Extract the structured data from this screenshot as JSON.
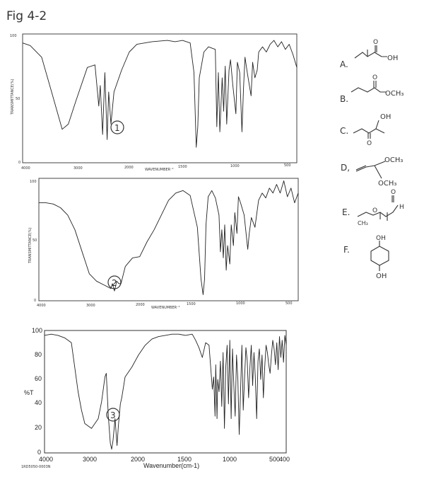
{
  "page": {
    "fig_label": "Fig 4-2"
  },
  "chart_data": [
    {
      "type": "line",
      "label": "1",
      "xlabel": "WAVENUMBER⁻¹",
      "ylabel": "TRANSMITTANCE(%)",
      "xlim": [
        4000,
        400
      ],
      "ylim": [
        0,
        100
      ],
      "x_ticks": [
        "4000",
        "3000",
        "2000",
        "1500",
        "1000",
        "500"
      ],
      "y_ticks": [
        "100",
        "50",
        "0"
      ],
      "series": [
        {
          "x": [
            4000,
            3900,
            3750,
            3620,
            3480,
            3400,
            3300,
            3150,
            3050,
            3000,
            2980,
            2950,
            2920,
            2890,
            2870,
            2840,
            2800,
            2700,
            2600,
            2500,
            2300,
            2100,
            2000,
            1900,
            1800,
            1750,
            1720,
            1700,
            1680,
            1620,
            1560,
            1470,
            1450,
            1430,
            1410,
            1380,
            1360,
            1340,
            1320,
            1290,
            1270,
            1240,
            1200,
            1180,
            1150,
            1120,
            1100,
            1080,
            1050,
            1000,
            980,
            950,
            920,
            900,
            850,
            800,
            750,
            700,
            650,
            600,
            550,
            500,
            450,
            400
          ],
          "y": [
            93,
            91,
            82,
            55,
            26,
            30,
            48,
            74,
            76,
            44,
            60,
            22,
            70,
            18,
            55,
            30,
            55,
            72,
            86,
            92,
            94,
            95,
            94,
            95,
            93,
            70,
            12,
            28,
            66,
            86,
            90,
            88,
            28,
            70,
            24,
            66,
            40,
            75,
            30,
            72,
            80,
            60,
            38,
            78,
            70,
            24,
            58,
            82,
            70,
            52,
            78,
            66,
            72,
            86,
            90,
            86,
            92,
            95,
            90,
            94,
            88,
            92,
            84,
            74
          ]
        }
      ]
    },
    {
      "type": "line",
      "label": "2",
      "xlabel": "WAVENUMBER⁻¹",
      "ylabel": "TRANSMITTANCE(%)",
      "xlim": [
        4000,
        400
      ],
      "ylim": [
        0,
        100
      ],
      "x_ticks": [
        "4000",
        "3000",
        "2000",
        "1500",
        "1000",
        "500"
      ],
      "y_ticks": [
        "100",
        "50",
        "0"
      ],
      "series": [
        {
          "x": [
            4000,
            3900,
            3800,
            3700,
            3600,
            3500,
            3400,
            3300,
            3200,
            3100,
            3000,
            2980,
            2950,
            2920,
            2890,
            2860,
            2800,
            2700,
            2600,
            2500,
            2400,
            2300,
            2200,
            2100,
            2000,
            1900,
            1800,
            1750,
            1720,
            1700,
            1680,
            1650,
            1600,
            1550,
            1500,
            1480,
            1460,
            1440,
            1420,
            1400,
            1380,
            1350,
            1330,
            1300,
            1280,
            1250,
            1230,
            1200,
            1150,
            1100,
            1080,
            1050,
            1000,
            950,
            900,
            850,
            800,
            750,
            700,
            650,
            600,
            550,
            500,
            450,
            400
          ],
          "y": [
            80,
            80,
            79,
            76,
            70,
            58,
            40,
            22,
            16,
            13,
            10,
            14,
            8,
            16,
            14,
            14,
            28,
            35,
            36,
            48,
            58,
            70,
            82,
            88,
            90,
            86,
            60,
            18,
            5,
            18,
            62,
            85,
            90,
            84,
            70,
            40,
            58,
            35,
            62,
            25,
            45,
            30,
            62,
            45,
            72,
            55,
            85,
            80,
            70,
            42,
            55,
            68,
            60,
            82,
            88,
            84,
            92,
            88,
            95,
            88,
            98,
            85,
            92,
            80,
            88
          ]
        }
      ]
    },
    {
      "type": "line",
      "label": "3",
      "xlabel": "Wavenumber(cm-1)",
      "ylabel": "%T",
      "xlim": [
        4000,
        400
      ],
      "ylim": [
        0,
        100
      ],
      "x_ticks": [
        "4000",
        "3000",
        "2000",
        "1500",
        "1000",
        "500",
        "400"
      ],
      "y_ticks": [
        "100",
        "80",
        "60",
        "40",
        "20",
        "0"
      ],
      "series": [
        {
          "x": [
            4000,
            3900,
            3800,
            3700,
            3600,
            3500,
            3450,
            3400,
            3300,
            3200,
            3150,
            3100,
            3080,
            3050,
            3020,
            3000,
            2980,
            2950,
            2920,
            2900,
            2870,
            2850,
            2800,
            2700,
            2600,
            2500,
            2400,
            2300,
            2200,
            2100,
            2000,
            1900,
            1800,
            1750,
            1700,
            1650,
            1600,
            1550,
            1500,
            1480,
            1460,
            1450,
            1430,
            1420,
            1400,
            1380,
            1360,
            1340,
            1320,
            1300,
            1280,
            1260,
            1240,
            1220,
            1200,
            1180,
            1160,
            1140,
            1120,
            1100,
            1080,
            1060,
            1040,
            1020,
            1000,
            980,
            960,
            940,
            920,
            900,
            880,
            860,
            840,
            820,
            800,
            780,
            760,
            740,
            720,
            700,
            680,
            660,
            640,
            620,
            600,
            580,
            560,
            540,
            520,
            500,
            480,
            460,
            440,
            420,
            400
          ],
          "y": [
            96,
            97,
            96,
            94,
            90,
            50,
            35,
            24,
            20,
            28,
            42,
            62,
            65,
            30,
            8,
            3,
            10,
            28,
            6,
            22,
            40,
            45,
            62,
            70,
            80,
            88,
            93,
            95,
            96,
            97,
            97,
            96,
            97,
            92,
            86,
            78,
            90,
            88,
            52,
            62,
            30,
            72,
            28,
            60,
            50,
            75,
            38,
            82,
            20,
            70,
            88,
            40,
            92,
            28,
            85,
            55,
            30,
            80,
            60,
            15,
            50,
            88,
            35,
            62,
            86,
            75,
            45,
            70,
            88,
            55,
            82,
            62,
            28,
            75,
            85,
            60,
            80,
            45,
            70,
            88,
            82,
            72,
            65,
            80,
            92,
            85,
            72,
            90,
            68,
            95,
            78,
            92,
            74,
            96,
            88
          ]
        }
      ]
    }
  ],
  "spectrum1": {
    "y_tick_labels": [
      "100",
      "50",
      "0"
    ],
    "x_tick_labels": [
      "4000",
      "3000",
      "2000",
      "1500",
      "1000",
      "500"
    ],
    "ylabel": "TRANSMITTANCE(%)",
    "xlabel": "WAVENUMBER⁻¹",
    "circled_number": "1"
  },
  "spectrum2": {
    "y_tick_labels": [
      "100",
      "50",
      "0"
    ],
    "x_tick_labels": [
      "4000",
      "3000",
      "2000",
      "1500",
      "1000",
      "500"
    ],
    "ylabel": "TRANSMITTANCE(%)",
    "xlabel": "WAVENUMBER⁻¹",
    "circled_number": "2"
  },
  "spectrum3": {
    "y_tick_labels": [
      "100",
      "80",
      "60",
      "40",
      "20",
      "0"
    ],
    "x_tick_labels": [
      "4000",
      "3000",
      "2000",
      "1500",
      "1000",
      "500",
      "400"
    ],
    "ylabel": "%T",
    "xlabel": "Wavenumber(cm-1)",
    "footer_code": "1RD5050-0003N",
    "circled_number": "3"
  },
  "structures": [
    {
      "letter": "A.",
      "groups": [
        "O",
        "OH"
      ]
    },
    {
      "letter": "B.",
      "groups": [
        "O",
        "OCH₃"
      ]
    },
    {
      "letter": "C.",
      "groups": [
        "OH",
        "O"
      ]
    },
    {
      "letter": "D,",
      "groups": [
        "OCH₃",
        "OCH₃"
      ]
    },
    {
      "letter": "E.",
      "groups": [
        "O",
        "H",
        "O",
        "CH₃"
      ]
    },
    {
      "letter": "F.",
      "groups": [
        "OH",
        "OH"
      ]
    }
  ]
}
